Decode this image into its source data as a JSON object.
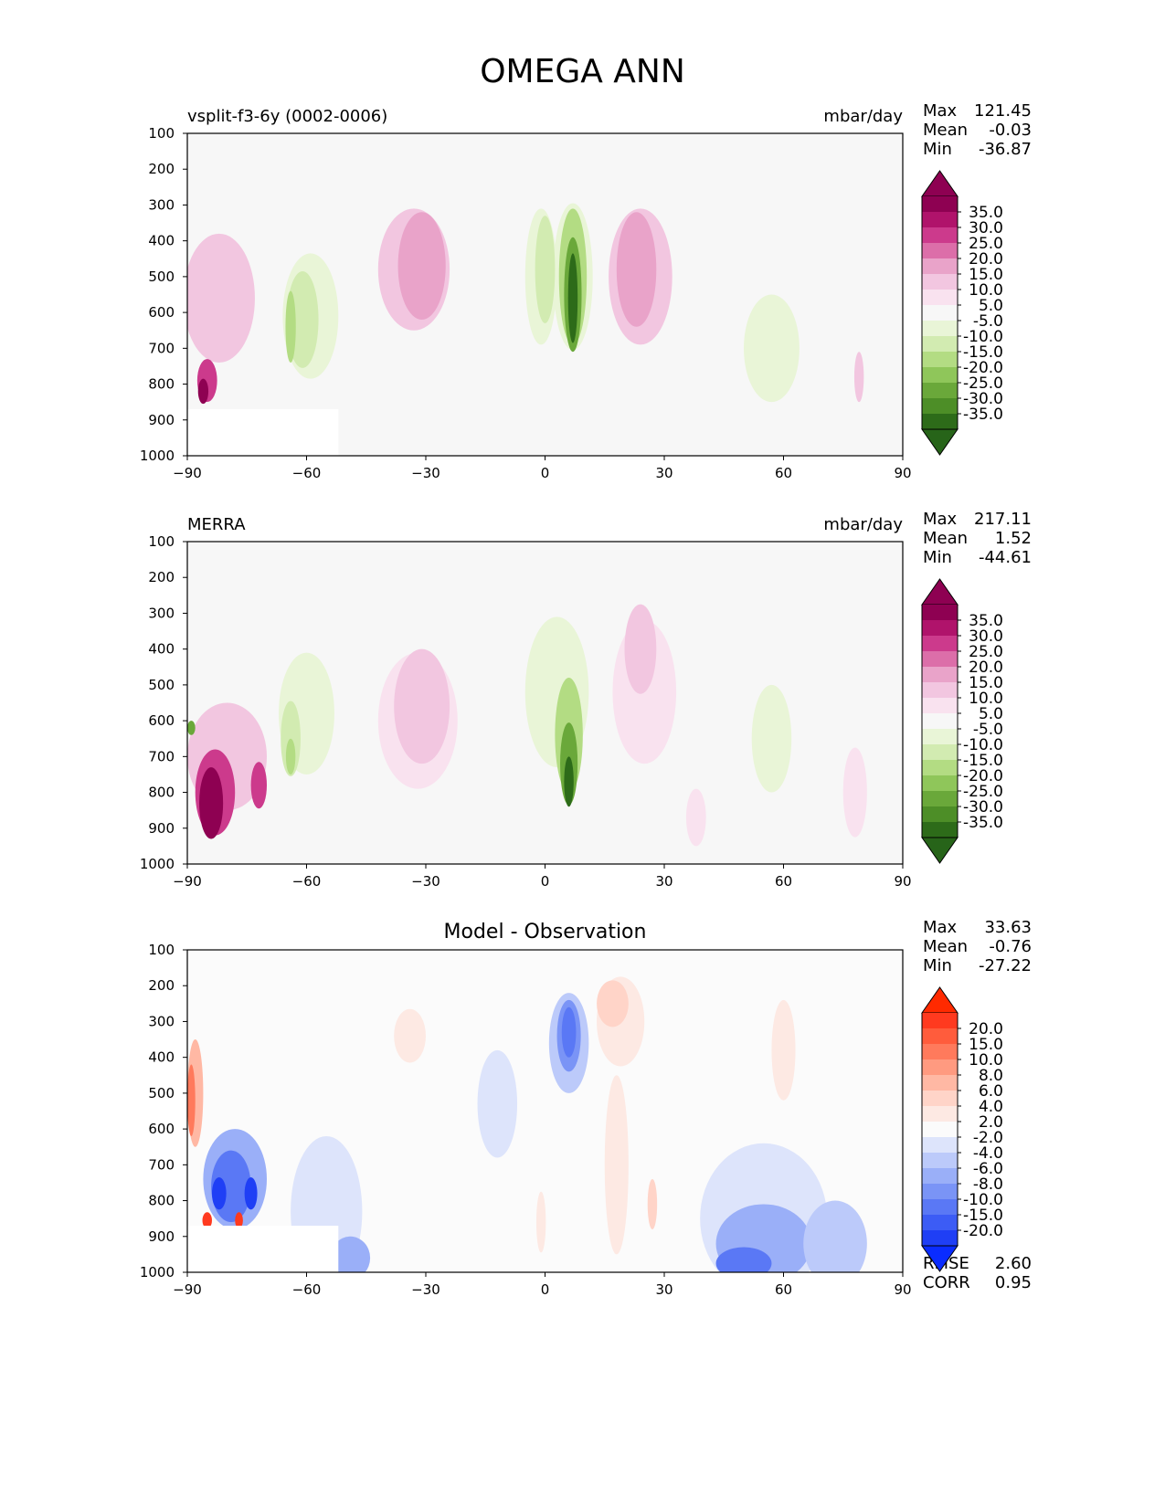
{
  "figure": {
    "title": "OMEGA ANN"
  },
  "chart_data": [
    {
      "type": "heatmap",
      "title_left": "vsplit-f3-6y (0002-0006)",
      "title_center": "",
      "units": "mbar/day",
      "x_ticks": [
        "−90",
        "−60",
        "−30",
        "0",
        "30",
        "60",
        "90"
      ],
      "y_ticks": [
        "100",
        "200",
        "300",
        "400",
        "500",
        "600",
        "700",
        "800",
        "900",
        "1000"
      ],
      "xlim": [
        -90,
        90
      ],
      "ylim": [
        1000,
        100
      ],
      "stats": [
        {
          "label": "Max",
          "value": "121.45"
        },
        {
          "label": "Mean",
          "value": "-0.03"
        },
        {
          "label": "Min",
          "value": "-36.87"
        }
      ],
      "colorbar": {
        "labels": [
          "35.0",
          "30.0",
          "25.0",
          "20.0",
          "15.0",
          "10.0",
          "5.0",
          "-5.0",
          "-10.0",
          "-15.0",
          "-20.0",
          "-25.0",
          "-30.0",
          "-35.0"
        ],
        "colors": [
          "#8e0152",
          "#b0136b",
          "#cc3a8c",
          "#dc6ea9",
          "#e9a3c9",
          "#f2c6e0",
          "#f9e2ef",
          "#f7f7f7",
          "#e9f5d7",
          "#d2ebb1",
          "#b3dc83",
          "#8fc65a",
          "#6aa83a",
          "#4d8e27",
          "#2d6b19"
        ],
        "min_extend": "#276419",
        "max_extend": "#8e0152"
      },
      "features": [
        {
          "type": "blob",
          "lat": -33,
          "p": 480,
          "w": 9,
          "h": 340,
          "level": 5
        },
        {
          "type": "blob",
          "lat": -31,
          "p": 470,
          "w": 6,
          "h": 300,
          "level": 4
        },
        {
          "type": "blob",
          "lat": 7,
          "p": 500,
          "w": 5,
          "h": 410,
          "level": 8
        },
        {
          "type": "blob",
          "lat": 7,
          "p": 500,
          "w": 3.5,
          "h": 380,
          "level": 10
        },
        {
          "type": "blob",
          "lat": 7,
          "p": 550,
          "w": 2.2,
          "h": 320,
          "level": 12
        },
        {
          "type": "blob",
          "lat": 7,
          "p": 560,
          "w": 1.2,
          "h": 250,
          "level": 14
        },
        {
          "type": "blob",
          "lat": -1,
          "p": 500,
          "w": 4,
          "h": 380,
          "level": 8
        },
        {
          "type": "blob",
          "lat": 0,
          "p": 480,
          "w": 2.5,
          "h": 300,
          "level": 9
        },
        {
          "type": "blob",
          "lat": 24,
          "p": 500,
          "w": 8,
          "h": 380,
          "level": 5
        },
        {
          "type": "blob",
          "lat": 23,
          "p": 480,
          "w": 5,
          "h": 320,
          "level": 4
        },
        {
          "type": "blob",
          "lat": -59,
          "p": 610,
          "w": 7,
          "h": 350,
          "level": 8
        },
        {
          "type": "blob",
          "lat": -61,
          "p": 620,
          "w": 4,
          "h": 270,
          "level": 9
        },
        {
          "type": "blob",
          "lat": -64,
          "p": 640,
          "w": 1.3,
          "h": 200,
          "level": 10
        },
        {
          "type": "blob",
          "lat": -82,
          "p": 560,
          "w": 9,
          "h": 360,
          "level": 5
        },
        {
          "type": "blob",
          "lat": -85,
          "p": 790,
          "w": 2.5,
          "h": 120,
          "level": 2
        },
        {
          "type": "blob",
          "lat": -86,
          "p": 820,
          "w": 1.3,
          "h": 70,
          "level": 0
        },
        {
          "type": "blob",
          "lat": 57,
          "p": 700,
          "w": 7,
          "h": 300,
          "level": 8
        },
        {
          "type": "blob",
          "lat": 79,
          "p": 780,
          "w": 1.2,
          "h": 140,
          "level": 5
        }
      ],
      "masks": [
        {
          "lat0": -90,
          "lat1": -52,
          "p0": 870,
          "p1": 1000
        }
      ]
    },
    {
      "type": "heatmap",
      "title_left": "MERRA",
      "title_center": "",
      "units": "mbar/day",
      "x_ticks": [
        "−90",
        "−60",
        "−30",
        "0",
        "30",
        "60",
        "90"
      ],
      "y_ticks": [
        "100",
        "200",
        "300",
        "400",
        "500",
        "600",
        "700",
        "800",
        "900",
        "1000"
      ],
      "xlim": [
        -90,
        90
      ],
      "ylim": [
        1000,
        100
      ],
      "stats": [
        {
          "label": "Max",
          "value": "217.11"
        },
        {
          "label": "Mean",
          "value": "1.52"
        },
        {
          "label": "Min",
          "value": "-44.61"
        }
      ],
      "colorbar": {
        "labels": [
          "35.0",
          "30.0",
          "25.0",
          "20.0",
          "15.0",
          "10.0",
          "5.0",
          "-5.0",
          "-10.0",
          "-15.0",
          "-20.0",
          "-25.0",
          "-30.0",
          "-35.0"
        ],
        "colors": [
          "#8e0152",
          "#b0136b",
          "#cc3a8c",
          "#dc6ea9",
          "#e9a3c9",
          "#f2c6e0",
          "#f9e2ef",
          "#f7f7f7",
          "#e9f5d7",
          "#d2ebb1",
          "#b3dc83",
          "#8fc65a",
          "#6aa83a",
          "#4d8e27",
          "#2d6b19"
        ],
        "min_extend": "#276419",
        "max_extend": "#8e0152"
      },
      "features": [
        {
          "type": "blob",
          "lat": -32,
          "p": 600,
          "w": 10,
          "h": 380,
          "level": 6
        },
        {
          "type": "blob",
          "lat": -31,
          "p": 560,
          "w": 7,
          "h": 320,
          "level": 5
        },
        {
          "type": "blob",
          "lat": 3,
          "p": 520,
          "w": 8,
          "h": 420,
          "level": 8
        },
        {
          "type": "blob",
          "lat": 6,
          "p": 640,
          "w": 3.5,
          "h": 320,
          "level": 10
        },
        {
          "type": "blob",
          "lat": 6,
          "p": 720,
          "w": 2.2,
          "h": 230,
          "level": 12
        },
        {
          "type": "blob",
          "lat": 6,
          "p": 770,
          "w": 1.2,
          "h": 140,
          "level": 14
        },
        {
          "type": "blob",
          "lat": 25,
          "p": 520,
          "w": 8,
          "h": 400,
          "level": 6
        },
        {
          "type": "blob",
          "lat": 24,
          "p": 400,
          "w": 4,
          "h": 250,
          "level": 5
        },
        {
          "type": "blob",
          "lat": -60,
          "p": 580,
          "w": 7,
          "h": 340,
          "level": 8
        },
        {
          "type": "blob",
          "lat": -64,
          "p": 650,
          "w": 2.5,
          "h": 210,
          "level": 9
        },
        {
          "type": "blob",
          "lat": -64,
          "p": 700,
          "w": 1.2,
          "h": 100,
          "level": 10
        },
        {
          "type": "blob",
          "lat": -80,
          "p": 700,
          "w": 10,
          "h": 300,
          "level": 5
        },
        {
          "type": "blob",
          "lat": -83,
          "p": 800,
          "w": 5,
          "h": 240,
          "level": 2
        },
        {
          "type": "blob",
          "lat": -84,
          "p": 830,
          "w": 3,
          "h": 200,
          "level": 0
        },
        {
          "type": "blob",
          "lat": -72,
          "p": 780,
          "w": 2,
          "h": 130,
          "level": 2
        },
        {
          "type": "blob",
          "lat": -89,
          "p": 620,
          "w": 1,
          "h": 40,
          "level": 12
        },
        {
          "type": "blob",
          "lat": 57,
          "p": 650,
          "w": 5,
          "h": 300,
          "level": 8
        },
        {
          "type": "blob",
          "lat": 78,
          "p": 800,
          "w": 3,
          "h": 250,
          "level": 6
        },
        {
          "type": "blob",
          "lat": 38,
          "p": 870,
          "w": 2.5,
          "h": 160,
          "level": 6
        }
      ],
      "masks": []
    },
    {
      "type": "heatmap",
      "title_left": "",
      "title_center": "Model - Observation",
      "units": "",
      "x_ticks": [
        "−90",
        "−60",
        "−30",
        "0",
        "30",
        "60",
        "90"
      ],
      "y_ticks": [
        "100",
        "200",
        "300",
        "400",
        "500",
        "600",
        "700",
        "800",
        "900",
        "1000"
      ],
      "xlim": [
        -90,
        90
      ],
      "ylim": [
        1000,
        100
      ],
      "stats": [
        {
          "label": "Max",
          "value": "33.63"
        },
        {
          "label": "Mean",
          "value": "-0.76"
        },
        {
          "label": "Min",
          "value": "-27.22"
        }
      ],
      "extra_stats": [
        {
          "label": "RMSE",
          "value": "2.60"
        },
        {
          "label": "CORR",
          "value": "0.95"
        }
      ],
      "colorbar": {
        "labels": [
          "20.0",
          "15.0",
          "10.0",
          "8.0",
          "6.0",
          "4.0",
          "2.0",
          "-2.0",
          "-4.0",
          "-6.0",
          "-8.0",
          "-10.0",
          "-15.0",
          "-20.0"
        ],
        "colors": [
          "#ff3a1f",
          "#ff5c3c",
          "#ff7a5c",
          "#ff9a80",
          "#ffb8a4",
          "#ffd4c8",
          "#fde9e3",
          "#fbfbfb",
          "#dde4fb",
          "#bccafa",
          "#9aaff8",
          "#7a94f6",
          "#5a78f5",
          "#3c5cf5",
          "#1f3ff5"
        ],
        "min_extend": "#0a2cff",
        "max_extend": "#ff2a00"
      },
      "features": [
        {
          "type": "blob",
          "lat": 6,
          "p": 360,
          "w": 5,
          "h": 280,
          "level": 9
        },
        {
          "type": "blob",
          "lat": 6,
          "p": 340,
          "w": 3,
          "h": 200,
          "level": 11
        },
        {
          "type": "blob",
          "lat": 6,
          "p": 330,
          "w": 1.8,
          "h": 140,
          "level": 12
        },
        {
          "type": "blob",
          "lat": 19,
          "p": 300,
          "w": 6,
          "h": 250,
          "level": 6
        },
        {
          "type": "blob",
          "lat": 17,
          "p": 250,
          "w": 4,
          "h": 130,
          "level": 5
        },
        {
          "type": "blob",
          "lat": 18,
          "p": 700,
          "w": 3,
          "h": 500,
          "level": 6
        },
        {
          "type": "blob",
          "lat": 27,
          "p": 810,
          "w": 1.2,
          "h": 140,
          "level": 5
        },
        {
          "type": "blob",
          "lat": -34,
          "p": 340,
          "w": 4,
          "h": 150,
          "level": 6
        },
        {
          "type": "blob",
          "lat": 60,
          "p": 380,
          "w": 3,
          "h": 280,
          "level": 6
        },
        {
          "type": "blob",
          "lat": -12,
          "p": 530,
          "w": 5,
          "h": 300,
          "level": 8
        },
        {
          "type": "blob",
          "lat": -1,
          "p": 860,
          "w": 1.2,
          "h": 170,
          "level": 6
        },
        {
          "type": "blob",
          "lat": -88,
          "p": 500,
          "w": 2,
          "h": 300,
          "level": 4
        },
        {
          "type": "blob",
          "lat": -89,
          "p": 520,
          "w": 1,
          "h": 200,
          "level": 2
        },
        {
          "type": "blob",
          "lat": -78,
          "p": 740,
          "w": 8,
          "h": 280,
          "level": 10
        },
        {
          "type": "blob",
          "lat": -79,
          "p": 760,
          "w": 5,
          "h": 200,
          "level": 12
        },
        {
          "type": "blob",
          "lat": -82,
          "p": 780,
          "w": 1.8,
          "h": 90,
          "level": 14
        },
        {
          "type": "blob",
          "lat": -74,
          "p": 780,
          "w": 1.6,
          "h": 90,
          "level": 14
        },
        {
          "type": "blob",
          "lat": -85,
          "p": 855,
          "w": 1.2,
          "h": 45,
          "level": 0
        },
        {
          "type": "blob",
          "lat": -77,
          "p": 855,
          "w": 1,
          "h": 45,
          "level": 0
        },
        {
          "type": "blob",
          "lat": -55,
          "p": 830,
          "w": 9,
          "h": 420,
          "level": 8
        },
        {
          "type": "blob",
          "lat": -49,
          "p": 960,
          "w": 5,
          "h": 120,
          "level": 10
        },
        {
          "type": "blob",
          "lat": 55,
          "p": 850,
          "w": 16,
          "h": 420,
          "level": 8
        },
        {
          "type": "blob",
          "lat": 55,
          "p": 920,
          "w": 12,
          "h": 220,
          "level": 10
        },
        {
          "type": "blob",
          "lat": 50,
          "p": 975,
          "w": 7,
          "h": 90,
          "level": 12
        },
        {
          "type": "blob",
          "lat": 73,
          "p": 920,
          "w": 8,
          "h": 240,
          "level": 9
        }
      ],
      "masks": [
        {
          "lat0": -90,
          "lat1": -52,
          "p0": 870,
          "p1": 1000
        }
      ]
    }
  ]
}
